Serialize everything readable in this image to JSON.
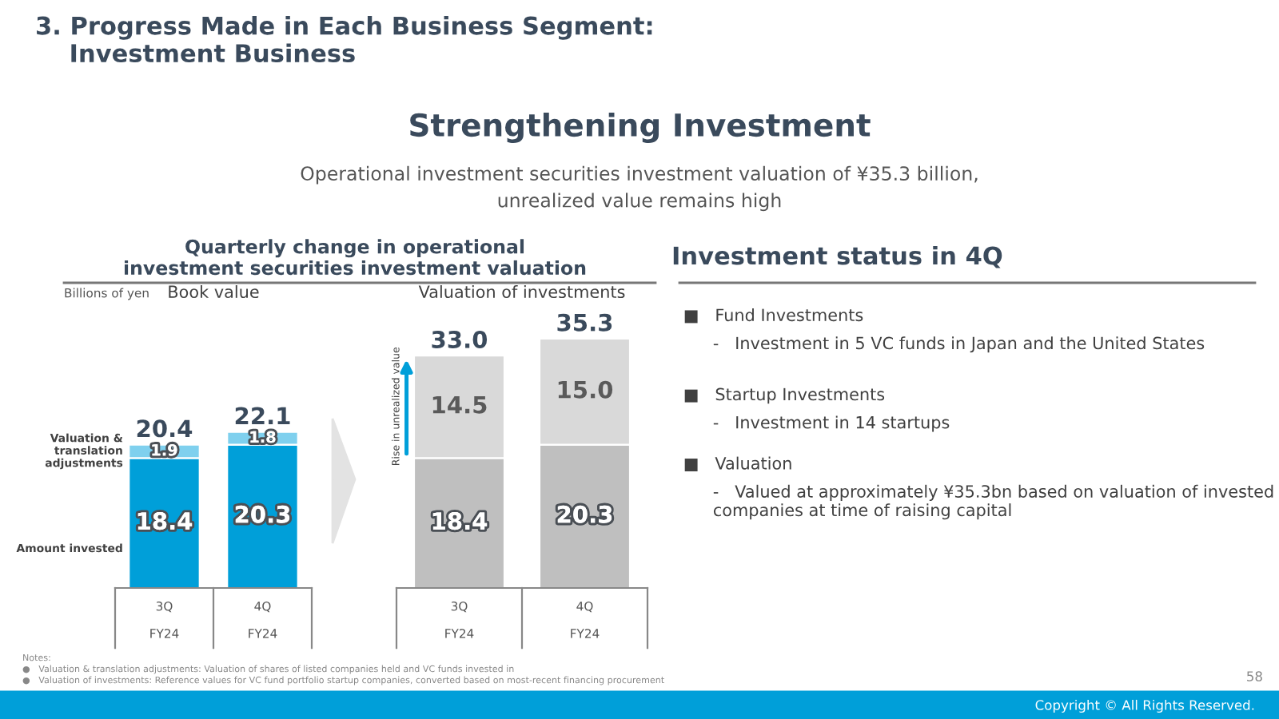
{
  "chart_data": [
    {
      "type": "bar",
      "title": "Book value",
      "stacked": true,
      "categories": [
        "3Q\n\nFY24",
        "4Q\n\nFY24"
      ],
      "series": [
        {
          "name": "Amount invested",
          "color": "#009fd9",
          "values": [
            18.4,
            20.3
          ],
          "value_labels": [
            "18.4",
            "20.3"
          ]
        },
        {
          "name": "Valuation &\ntranslation\nadjustments",
          "color": "#7fd0ee",
          "values": [
            1.9,
            1.8
          ],
          "value_labels": [
            "1.9",
            "1.8"
          ]
        }
      ],
      "totals": [
        "20.4",
        "22.1"
      ],
      "tick_labels": "x",
      "annotations": [
        "3. Progress Made in Each Business Segment:\n    Investment Business",
        "Strengthening Investment",
        "Operational investment securities investment valuation of ¥35.3 billion,\nunrealized value remains high",
        "Quarterly change in operational\ninvestment securities investment valuation",
        "Billions of yen",
        "Notes:",
        "●   Valuation & translation adjustments: Valuation of shares of listed companies held and VC funds invested in",
        "●   Valuation of investments: Reference values for VC fund portfolio startup companies, converted based on most-recent financing procurement",
        "58",
        "Copyright © All Rights Reserved."
      ]
    },
    {
      "type": "bar",
      "title": "Valuation of investments",
      "stacked": true,
      "categories": [
        "3Q\n\nFY24",
        "4Q\n\nFY24"
      ],
      "series": [
        {
          "color": "#bfbfbf",
          "values": [
            18.4,
            20.3
          ],
          "value_labels": [
            "18.4",
            "20.3"
          ]
        },
        {
          "color": "#d9d9d9",
          "values": [
            14.5,
            15.0
          ],
          "value_labels": [
            "14.5",
            "15.0"
          ]
        }
      ],
      "totals": [
        "33.0",
        "35.3"
      ],
      "tick_labels": "x",
      "annotations": [
        "Rise in unrealized value"
      ]
    },
    {
      "type": "other",
      "title": "Investment status in 4Q",
      "annotations": [
        "■   Fund Investments",
        "-   Investment in 5 VC funds in Japan and the United States",
        "■   Startup Investments",
        "-   Investment in 14 startups",
        "■   Valuation",
        "-   Valued at approximately ¥35.3bn based on valuation of invested companies at time of raising capital"
      ]
    }
  ]
}
